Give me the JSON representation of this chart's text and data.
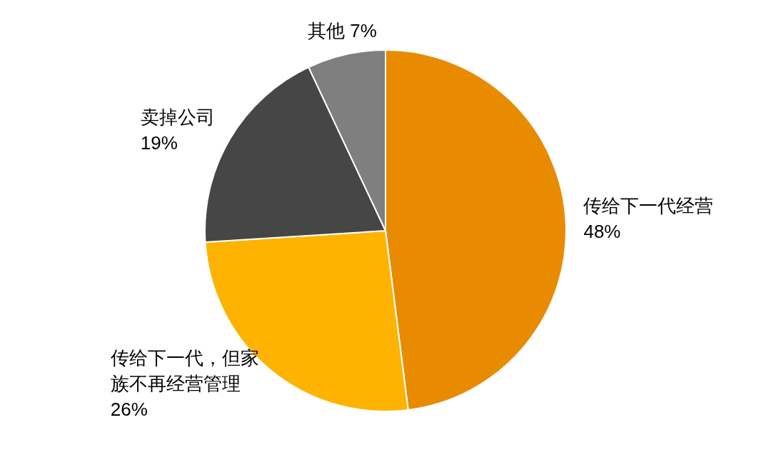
{
  "chart_data": {
    "type": "pie",
    "categories": [
      "传给下一代经营",
      "传给下一代，但家族不再经营管理",
      "卖掉公司",
      "其他"
    ],
    "values": [
      48,
      26,
      19,
      7
    ],
    "colors": [
      "#e98b00",
      "#fdb300",
      "#464646",
      "#7f7f7f"
    ],
    "value_labels": [
      "48%",
      "26%",
      "19%",
      "7%"
    ]
  }
}
